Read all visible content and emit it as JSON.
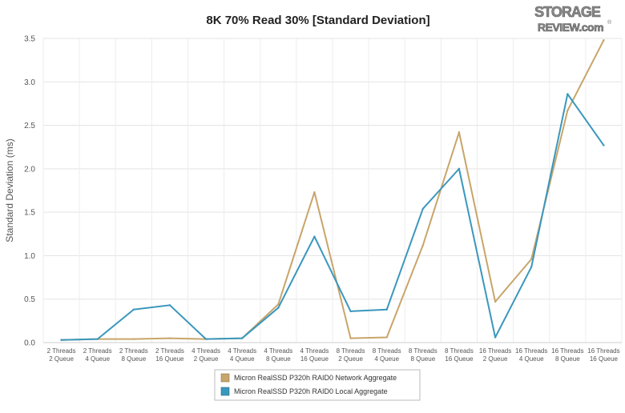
{
  "brand": {
    "logo_line1": "STORAGE",
    "logo_line2": "REVIEW.com",
    "logo_mark": "®"
  },
  "chart_data": {
    "type": "line",
    "title": "8K 70% Read 30% [Standard Deviation]",
    "xlabel": "",
    "ylabel": "Standard Deviation (ms)",
    "ylim": [
      0,
      3.5
    ],
    "yticks": [
      "0.0",
      "0.5",
      "1.0",
      "1.5",
      "2.0",
      "2.5",
      "3.0",
      "3.5"
    ],
    "grid": true,
    "legend_position": "bottom-center",
    "categories": [
      [
        "2 Threads",
        "2 Queue"
      ],
      [
        "2 Threads",
        "4 Queue"
      ],
      [
        "2 Threads",
        "8 Queue"
      ],
      [
        "2 Threads",
        "16 Queue"
      ],
      [
        "4 Threads",
        "2 Queue"
      ],
      [
        "4 Threads",
        "4 Queue"
      ],
      [
        "4 Threads",
        "8 Queue"
      ],
      [
        "4 Threads",
        "16 Queue"
      ],
      [
        "8 Threads",
        "2 Queue"
      ],
      [
        "8 Threads",
        "4 Queue"
      ],
      [
        "8 Threads",
        "8 Queue"
      ],
      [
        "8 Threads",
        "16 Queue"
      ],
      [
        "16 Threads",
        "2 Queue"
      ],
      [
        "16 Threads",
        "4 Queue"
      ],
      [
        "16 Threads",
        "8 Queue"
      ],
      [
        "16 Threads",
        "16 Queue"
      ]
    ],
    "series": [
      {
        "name": "Micron RealSSD P320h RAID0 Network Aggregate",
        "color": "#c8a56a",
        "values": [
          0.03,
          0.04,
          0.04,
          0.05,
          0.04,
          0.05,
          0.44,
          1.73,
          0.05,
          0.06,
          1.12,
          2.42,
          0.47,
          0.96,
          2.67,
          3.48
        ]
      },
      {
        "name": "Micron RealSSD P320h RAID0 Local Aggregate",
        "color": "#3a97bd",
        "values": [
          0.03,
          0.04,
          0.38,
          0.43,
          0.04,
          0.05,
          0.4,
          1.22,
          0.36,
          0.38,
          1.54,
          2.0,
          0.06,
          0.87,
          2.86,
          2.27
        ]
      }
    ]
  }
}
